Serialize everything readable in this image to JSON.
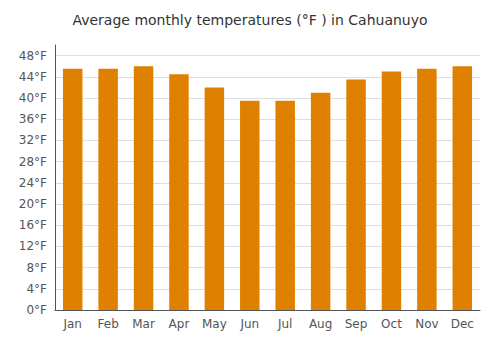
{
  "chart_data": {
    "type": "bar",
    "title": "Average monthly temperatures (°F ) in Cahuanuyo",
    "categories": [
      "Jan",
      "Feb",
      "Mar",
      "Apr",
      "May",
      "Jun",
      "Jul",
      "Aug",
      "Sep",
      "Oct",
      "Nov",
      "Dec"
    ],
    "values": [
      45.5,
      45.5,
      46.0,
      44.5,
      42.0,
      39.5,
      39.5,
      41.0,
      43.5,
      45.0,
      45.5,
      46.0
    ],
    "color": "#E08000",
    "ylim": [
      0,
      50
    ],
    "yticks": [
      {
        "value": 0,
        "label": "0°F"
      },
      {
        "value": 4,
        "label": "4°F"
      },
      {
        "value": 8,
        "label": "8°F"
      },
      {
        "value": 12,
        "label": "12°F"
      },
      {
        "value": 16,
        "label": "16°F"
      },
      {
        "value": 20,
        "label": "20°F"
      },
      {
        "value": 24,
        "label": "24°F"
      },
      {
        "value": 28,
        "label": "28°F"
      },
      {
        "value": 32,
        "label": "32°F"
      },
      {
        "value": 36,
        "label": "36°F"
      },
      {
        "value": 40,
        "label": "40°F"
      },
      {
        "value": 44,
        "label": "44°F"
      },
      {
        "value": 48,
        "label": "48°F"
      }
    ],
    "grid": true
  }
}
